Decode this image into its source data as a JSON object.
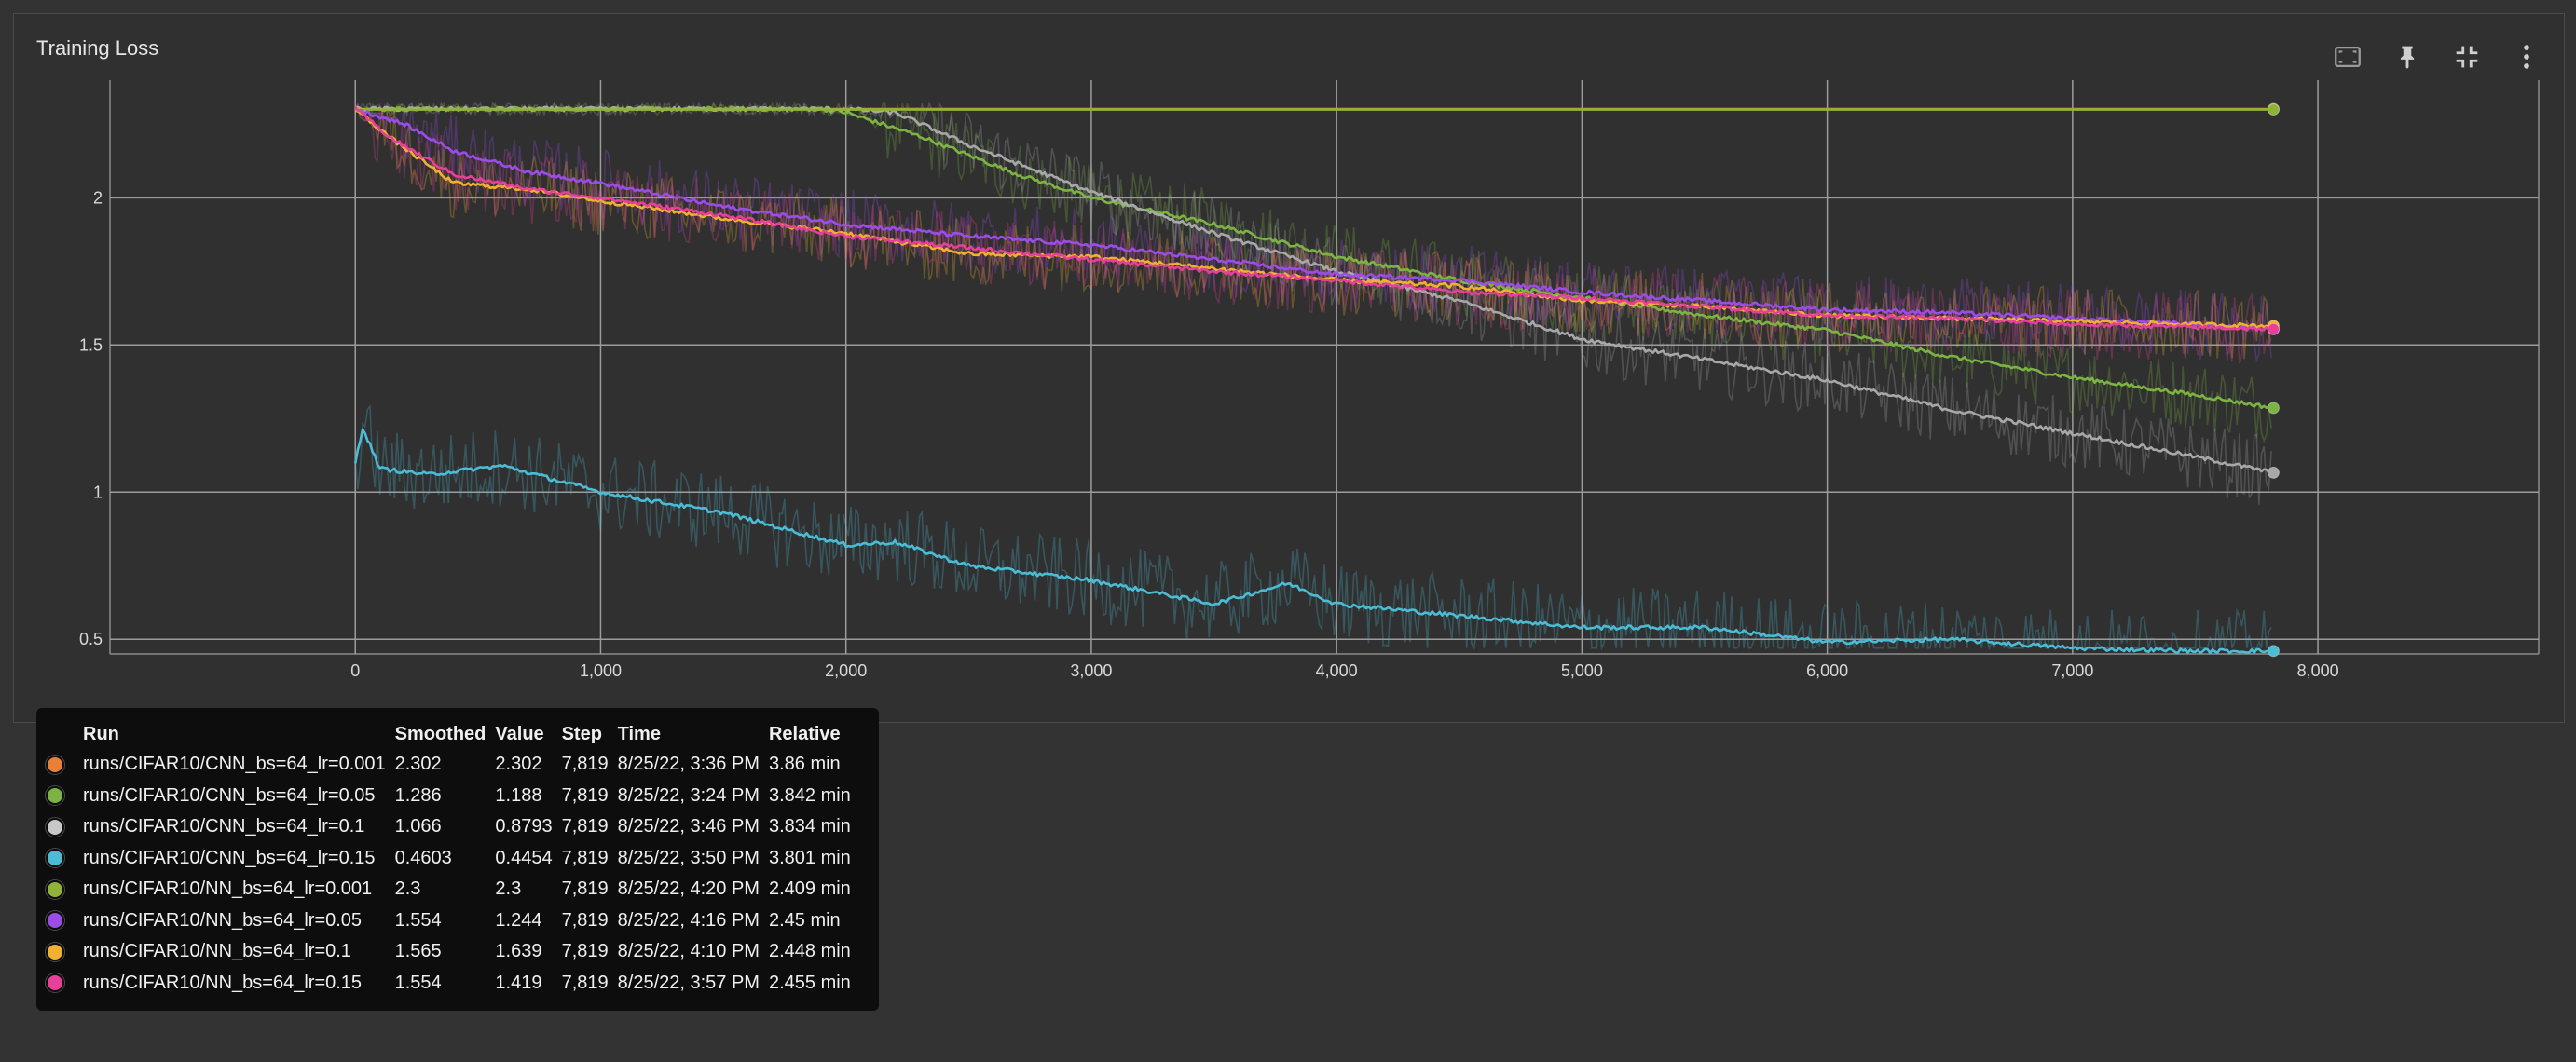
{
  "card": {
    "title": "Training Loss"
  },
  "toolbar": {
    "icons": [
      "fit-domain-icon",
      "pin-icon",
      "collapse-icon",
      "more-vert-icon"
    ]
  },
  "chart_data": {
    "type": "line",
    "title": "",
    "xlabel": "",
    "ylabel": "",
    "xlim": [
      -1000,
      8900
    ],
    "ylim": [
      0.45,
      2.4
    ],
    "x_ticks": [
      0,
      1000,
      2000,
      3000,
      4000,
      5000,
      6000,
      7000,
      8000
    ],
    "x_tick_labels": [
      "0",
      "1,000",
      "2,000",
      "3,000",
      "4,000",
      "5,000",
      "6,000",
      "7,000",
      "8,000"
    ],
    "y_ticks": [
      0.5,
      1,
      1.5,
      2
    ],
    "y_tick_labels": [
      "0.5",
      "1",
      "1.5",
      "2"
    ],
    "grid": true,
    "series": [
      {
        "name": "runs/CIFAR10/CNN_bs=64_lr=0.001",
        "color": "#e8803a",
        "x": [
          0,
          1000,
          2000,
          3000,
          4000,
          5000,
          6000,
          7000,
          7819
        ],
        "smoothed": [
          2.302,
          2.302,
          2.302,
          2.302,
          2.302,
          2.302,
          2.302,
          2.302,
          2.302
        ]
      },
      {
        "name": "runs/CIFAR10/CNN_bs=64_lr=0.05",
        "color": "#7cb342",
        "x": [
          0,
          1000,
          1900,
          2000,
          2300,
          2700,
          3000,
          3500,
          4000,
          4500,
          5000,
          5500,
          6000,
          6500,
          7000,
          7500,
          7819
        ],
        "smoothed": [
          2.302,
          2.302,
          2.302,
          2.29,
          2.21,
          2.08,
          2.0,
          1.91,
          1.8,
          1.72,
          1.66,
          1.6,
          1.55,
          1.46,
          1.39,
          1.33,
          1.286
        ]
      },
      {
        "name": "runs/CIFAR10/CNN_bs=64_lr=0.1",
        "color": "#a8a8a8",
        "x": [
          0,
          1000,
          2000,
          2200,
          2500,
          3000,
          3500,
          4000,
          4500,
          5000,
          5500,
          6000,
          6500,
          7000,
          7500,
          7819
        ],
        "smoothed": [
          2.302,
          2.302,
          2.302,
          2.29,
          2.18,
          2.02,
          1.88,
          1.75,
          1.65,
          1.52,
          1.45,
          1.38,
          1.28,
          1.2,
          1.12,
          1.066
        ]
      },
      {
        "name": "runs/CIFAR10/CNN_bs=64_lr=0.15",
        "color": "#4bbcd4",
        "x": [
          0,
          30,
          100,
          300,
          600,
          1000,
          1500,
          2000,
          2200,
          2500,
          3000,
          3500,
          3800,
          4000,
          4500,
          5000,
          5500,
          6000,
          6500,
          7000,
          7500,
          7819
        ],
        "smoothed": [
          1.1,
          1.22,
          1.08,
          1.06,
          1.09,
          1.0,
          0.93,
          0.82,
          0.83,
          0.75,
          0.7,
          0.62,
          0.69,
          0.62,
          0.58,
          0.54,
          0.54,
          0.49,
          0.5,
          0.47,
          0.46,
          0.4603
        ]
      },
      {
        "name": "runs/CIFAR10/NN_bs=64_lr=0.001",
        "color": "#8fb339",
        "x": [
          0,
          1000,
          2000,
          3000,
          4000,
          5000,
          6000,
          7000,
          7819
        ],
        "smoothed": [
          2.3,
          2.3,
          2.3,
          2.3,
          2.3,
          2.3,
          2.3,
          2.3,
          2.3
        ]
      },
      {
        "name": "runs/CIFAR10/NN_bs=64_lr=0.05",
        "color": "#9c4de8",
        "x": [
          0,
          200,
          400,
          700,
          1000,
          1500,
          2000,
          2500,
          3000,
          3500,
          4000,
          4500,
          5000,
          5500,
          6000,
          6500,
          7000,
          7500,
          7819
        ],
        "smoothed": [
          2.302,
          2.25,
          2.16,
          2.09,
          2.05,
          1.97,
          1.91,
          1.87,
          1.84,
          1.79,
          1.74,
          1.72,
          1.68,
          1.65,
          1.62,
          1.61,
          1.59,
          1.57,
          1.554
        ]
      },
      {
        "name": "runs/CIFAR10/NN_bs=64_lr=0.1",
        "color": "#f0b030",
        "x": [
          0,
          150,
          400,
          700,
          1000,
          1500,
          2000,
          2500,
          3000,
          3500,
          4000,
          4500,
          5000,
          5500,
          6000,
          6500,
          7000,
          7500,
          7819
        ],
        "smoothed": [
          2.302,
          2.2,
          2.05,
          2.03,
          1.99,
          1.93,
          1.88,
          1.81,
          1.8,
          1.76,
          1.72,
          1.7,
          1.65,
          1.63,
          1.6,
          1.59,
          1.58,
          1.57,
          1.565
        ]
      },
      {
        "name": "runs/CIFAR10/NN_bs=64_lr=0.15",
        "color": "#e8409a",
        "x": [
          0,
          150,
          400,
          700,
          1000,
          1500,
          2000,
          2500,
          3000,
          3500,
          4000,
          4500,
          5000,
          5500,
          6000,
          6500,
          7000,
          7500,
          7819
        ],
        "smoothed": [
          2.302,
          2.2,
          2.08,
          2.03,
          2.0,
          1.94,
          1.87,
          1.83,
          1.79,
          1.75,
          1.72,
          1.68,
          1.66,
          1.63,
          1.6,
          1.59,
          1.57,
          1.56,
          1.554
        ]
      }
    ]
  },
  "legend": {
    "headers": [
      "Run",
      "Smoothed",
      "Value",
      "Step",
      "Time",
      "Relative"
    ],
    "rows": [
      {
        "run": "runs/CIFAR10/CNN_bs=64_lr=0.001",
        "smoothed": "2.302",
        "value": "2.302",
        "step": "7,819",
        "time": "8/25/22, 3:36 PM",
        "relative": "3.86 min",
        "color": "#e8803a"
      },
      {
        "run": "runs/CIFAR10/CNN_bs=64_lr=0.05",
        "smoothed": "1.286",
        "value": "1.188",
        "step": "7,819",
        "time": "8/25/22, 3:24 PM",
        "relative": "3.842 min",
        "color": "#7cb342"
      },
      {
        "run": "runs/CIFAR10/CNN_bs=64_lr=0.1",
        "smoothed": "1.066",
        "value": "0.8793",
        "step": "7,819",
        "time": "8/25/22, 3:46 PM",
        "relative": "3.834 min",
        "color": "#c8c8c8"
      },
      {
        "run": "runs/CIFAR10/CNN_bs=64_lr=0.15",
        "smoothed": "0.4603",
        "value": "0.4454",
        "step": "7,819",
        "time": "8/25/22, 3:50 PM",
        "relative": "3.801 min",
        "color": "#4bbcd4"
      },
      {
        "run": "runs/CIFAR10/NN_bs=64_lr=0.001",
        "smoothed": "2.3",
        "value": "2.3",
        "step": "7,819",
        "time": "8/25/22, 4:20 PM",
        "relative": "2.409 min",
        "color": "#8fb339"
      },
      {
        "run": "runs/CIFAR10/NN_bs=64_lr=0.05",
        "smoothed": "1.554",
        "value": "1.244",
        "step": "7,819",
        "time": "8/25/22, 4:16 PM",
        "relative": "2.45 min",
        "color": "#9c4de8"
      },
      {
        "run": "runs/CIFAR10/NN_bs=64_lr=0.1",
        "smoothed": "1.565",
        "value": "1.639",
        "step": "7,819",
        "time": "8/25/22, 4:10 PM",
        "relative": "2.448 min",
        "color": "#f0b030"
      },
      {
        "run": "runs/CIFAR10/NN_bs=64_lr=0.15",
        "smoothed": "1.554",
        "value": "1.419",
        "step": "7,819",
        "time": "8/25/22, 3:57 PM",
        "relative": "2.455 min",
        "color": "#e8409a"
      }
    ]
  }
}
